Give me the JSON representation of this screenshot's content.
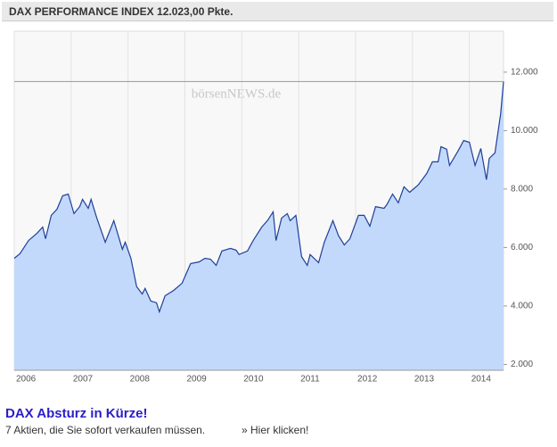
{
  "chart_data": {
    "type": "area",
    "title": "DAX PERFORMANCE INDEX 12.023,00 Pkte.",
    "watermark": "börsenNEWS.de",
    "x": [
      2006.0,
      2006.1,
      2006.25,
      2006.4,
      2006.5,
      2006.55,
      2006.65,
      2006.75,
      2006.85,
      2006.95,
      2007.05,
      2007.15,
      2007.2,
      2007.3,
      2007.35,
      2007.45,
      2007.6,
      2007.75,
      2007.9,
      2007.95,
      2008.05,
      2008.15,
      2008.25,
      2008.3,
      2008.4,
      2008.5,
      2008.55,
      2008.65,
      2008.8,
      2008.95,
      2009.1,
      2009.25,
      2009.35,
      2009.45,
      2009.55,
      2009.65,
      2009.8,
      2009.9,
      2009.95,
      2010.1,
      2010.2,
      2010.35,
      2010.45,
      2010.55,
      2010.6,
      2010.7,
      2010.8,
      2010.85,
      2010.95,
      2011.05,
      2011.15,
      2011.2,
      2011.35,
      2011.45,
      2011.6,
      2011.7,
      2011.8,
      2011.9,
      2012.05,
      2012.15,
      2012.25,
      2012.35,
      2012.5,
      2012.55,
      2012.65,
      2012.75,
      2012.85,
      2012.95,
      2013.1,
      2013.25,
      2013.35,
      2013.45,
      2013.5,
      2013.6,
      2013.65,
      2013.8,
      2013.9,
      2014.0,
      2014.1,
      2014.2,
      2014.3,
      2014.35,
      2014.45,
      2014.5,
      2014.55,
      2014.6
    ],
    "series": [
      {
        "color": "#1f3f99",
        "fill": "#c2d9fb",
        "values": [
          5630,
          5790,
          6240,
          6490,
          6700,
          6300,
          7100,
          7310,
          7770,
          7830,
          7160,
          7400,
          7650,
          7340,
          7650,
          7010,
          6180,
          6920,
          5940,
          6180,
          5630,
          4660,
          4410,
          4600,
          4170,
          4110,
          3800,
          4350,
          4530,
          4780,
          5450,
          5510,
          5630,
          5600,
          5390,
          5880,
          5970,
          5910,
          5760,
          5880,
          6240,
          6700,
          6920,
          7220,
          6240,
          7010,
          7160,
          6920,
          7100,
          5690,
          5390,
          5760,
          5480,
          6180,
          6920,
          6400,
          6090,
          6300,
          7100,
          7100,
          6730,
          7400,
          7340,
          7470,
          7830,
          7530,
          8080,
          7890,
          8140,
          8530,
          8930,
          8930,
          9450,
          9360,
          8810,
          9300,
          9660,
          9600,
          8810,
          9390,
          8320,
          9050,
          9240,
          9910,
          10580,
          11680
        ]
      }
    ],
    "xlim": [
      2006,
      2014.6
    ],
    "xticks": [
      2006,
      2007,
      2008,
      2009,
      2010,
      2011,
      2012,
      2013,
      2014
    ],
    "ylim": [
      1800,
      13400
    ],
    "yticks": [
      {
        "value": 2000,
        "label": "2.000"
      },
      {
        "value": 4000,
        "label": "4.000"
      },
      {
        "value": 6000,
        "label": "6.000"
      },
      {
        "value": 8000,
        "label": "8.000"
      },
      {
        "value": 10000,
        "label": "10.000"
      },
      {
        "value": 12000,
        "label": "12.000"
      }
    ],
    "grid": true
  },
  "ad": {
    "headline": "DAX Absturz in Kürze!",
    "text": "7 Aktien, die Sie sofort verkaufen müssen.",
    "link": "» Hier klicken!"
  }
}
